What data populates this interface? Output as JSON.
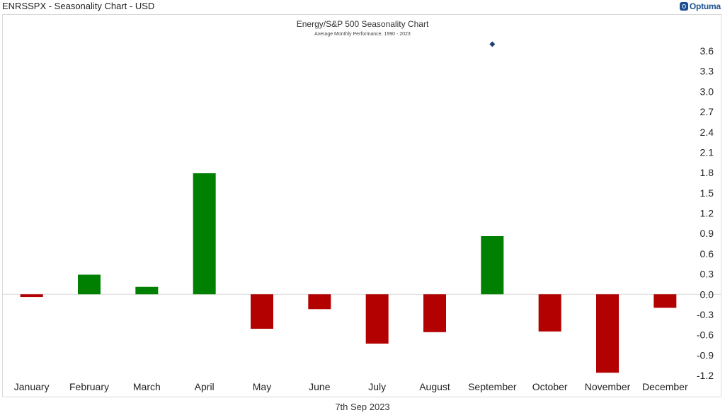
{
  "window": {
    "title": "ENRSSPX - Seasonality Chart - USD",
    "brand": "Optuma"
  },
  "footer": {
    "date": "7th Sep 2023"
  },
  "colors": {
    "positive": "#008000",
    "negative": "#b30000",
    "marker": "#1f3f73",
    "grid": "#d9d9d9"
  },
  "chart_data": {
    "type": "bar",
    "title": "Energy/S&P 500 Seasonality Chart",
    "subtitle": "Average Monthly Performance, 1990 - 2023",
    "categories": [
      "January",
      "February",
      "March",
      "April",
      "May",
      "June",
      "July",
      "August",
      "September",
      "October",
      "November",
      "December"
    ],
    "values": [
      -0.04,
      0.29,
      0.11,
      1.79,
      -0.51,
      -0.22,
      -0.73,
      -0.56,
      0.86,
      -0.55,
      -1.16,
      -0.2
    ],
    "ylim": [
      -1.2,
      3.6
    ],
    "yticks": [
      "3.6",
      "3.3",
      "3.0",
      "2.7",
      "2.4",
      "2.1",
      "1.8",
      "1.5",
      "1.2",
      "0.9",
      "0.6",
      "0.3",
      "0.0",
      "-0.3",
      "-0.6",
      "-0.9",
      "-1.2"
    ],
    "marker": {
      "category": "September",
      "value": 3.7
    },
    "zero_line": true,
    "y_axis_position": "right"
  }
}
